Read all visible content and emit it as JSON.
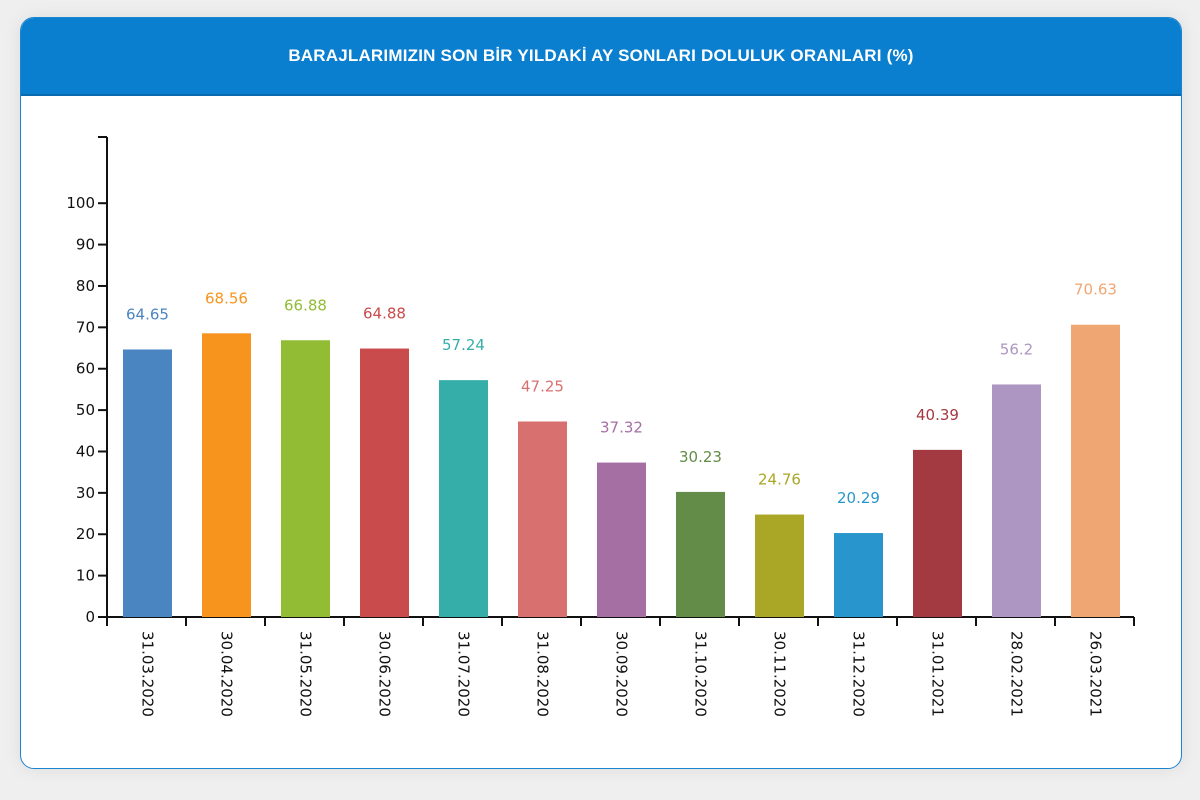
{
  "chart_data": {
    "type": "bar",
    "title": "BARAJLARIMIZIN SON BİR YILDAKİ AY SONLARI DOLULUK ORANLARI (%)",
    "categories": [
      "31.03.2020",
      "30.04.2020",
      "31.05.2020",
      "30.06.2020",
      "31.07.2020",
      "31.08.2020",
      "30.09.2020",
      "31.10.2020",
      "30.11.2020",
      "31.12.2020",
      "31.01.2021",
      "28.02.2021",
      "26.03.2021"
    ],
    "values": [
      64.65,
      68.56,
      66.88,
      64.88,
      57.24,
      47.25,
      37.32,
      30.23,
      24.76,
      20.29,
      40.39,
      56.2,
      70.63
    ],
    "value_labels": [
      "64.65",
      "68.56",
      "66.88",
      "64.88",
      "57.24",
      "47.25",
      "37.32",
      "30.23",
      "24.76",
      "20.29",
      "40.39",
      "56.2",
      "70.63"
    ],
    "colors": [
      "#4a85c2",
      "#f7941d",
      "#92bc34",
      "#c94b4b",
      "#35aeaa",
      "#d97070",
      "#a66fa3",
      "#628c47",
      "#aaa626",
      "#2896cd",
      "#a33a42",
      "#ad96c1",
      "#f0a672"
    ],
    "yticks": [
      "0",
      "10",
      "20",
      "30",
      "40",
      "50",
      "60",
      "70",
      "80",
      "90",
      "100"
    ],
    "ylim": [
      0,
      116
    ],
    "xlabel": "",
    "ylabel": "",
    "grid": false,
    "legend": "none",
    "header_color": "#0a7fd0"
  }
}
